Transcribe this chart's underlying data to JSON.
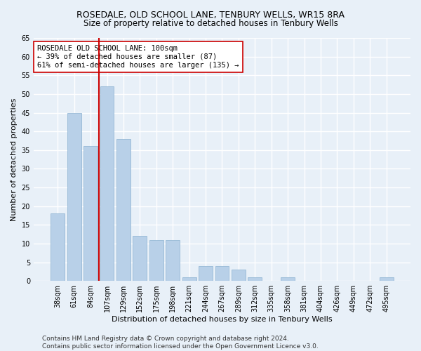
{
  "title": "ROSEDALE, OLD SCHOOL LANE, TENBURY WELLS, WR15 8RA",
  "subtitle": "Size of property relative to detached houses in Tenbury Wells",
  "xlabel": "Distribution of detached houses by size in Tenbury Wells",
  "ylabel": "Number of detached properties",
  "categories": [
    "38sqm",
    "61sqm",
    "84sqm",
    "107sqm",
    "129sqm",
    "152sqm",
    "175sqm",
    "198sqm",
    "221sqm",
    "244sqm",
    "267sqm",
    "289sqm",
    "312sqm",
    "335sqm",
    "358sqm",
    "381sqm",
    "404sqm",
    "426sqm",
    "449sqm",
    "472sqm",
    "495sqm"
  ],
  "values": [
    18,
    45,
    36,
    52,
    38,
    12,
    11,
    11,
    1,
    4,
    4,
    3,
    1,
    0,
    1,
    0,
    0,
    0,
    0,
    0,
    1
  ],
  "bar_color": "#b8d0e8",
  "bar_edgecolor": "#8ab0d0",
  "vline_color": "#cc0000",
  "annotation_text": "ROSEDALE OLD SCHOOL LANE: 100sqm\n← 39% of detached houses are smaller (87)\n61% of semi-detached houses are larger (135) →",
  "annotation_box_color": "#ffffff",
  "annotation_box_edgecolor": "#cc0000",
  "ylim": [
    0,
    65
  ],
  "yticks": [
    0,
    5,
    10,
    15,
    20,
    25,
    30,
    35,
    40,
    45,
    50,
    55,
    60,
    65
  ],
  "footer_line1": "Contains HM Land Registry data © Crown copyright and database right 2024.",
  "footer_line2": "Contains public sector information licensed under the Open Government Licence v3.0.",
  "background_color": "#e8f0f8",
  "grid_color": "#ffffff",
  "title_fontsize": 9,
  "xlabel_fontsize": 8,
  "ylabel_fontsize": 8,
  "tick_fontsize": 7,
  "annotation_fontsize": 7.5,
  "footer_fontsize": 6.5
}
